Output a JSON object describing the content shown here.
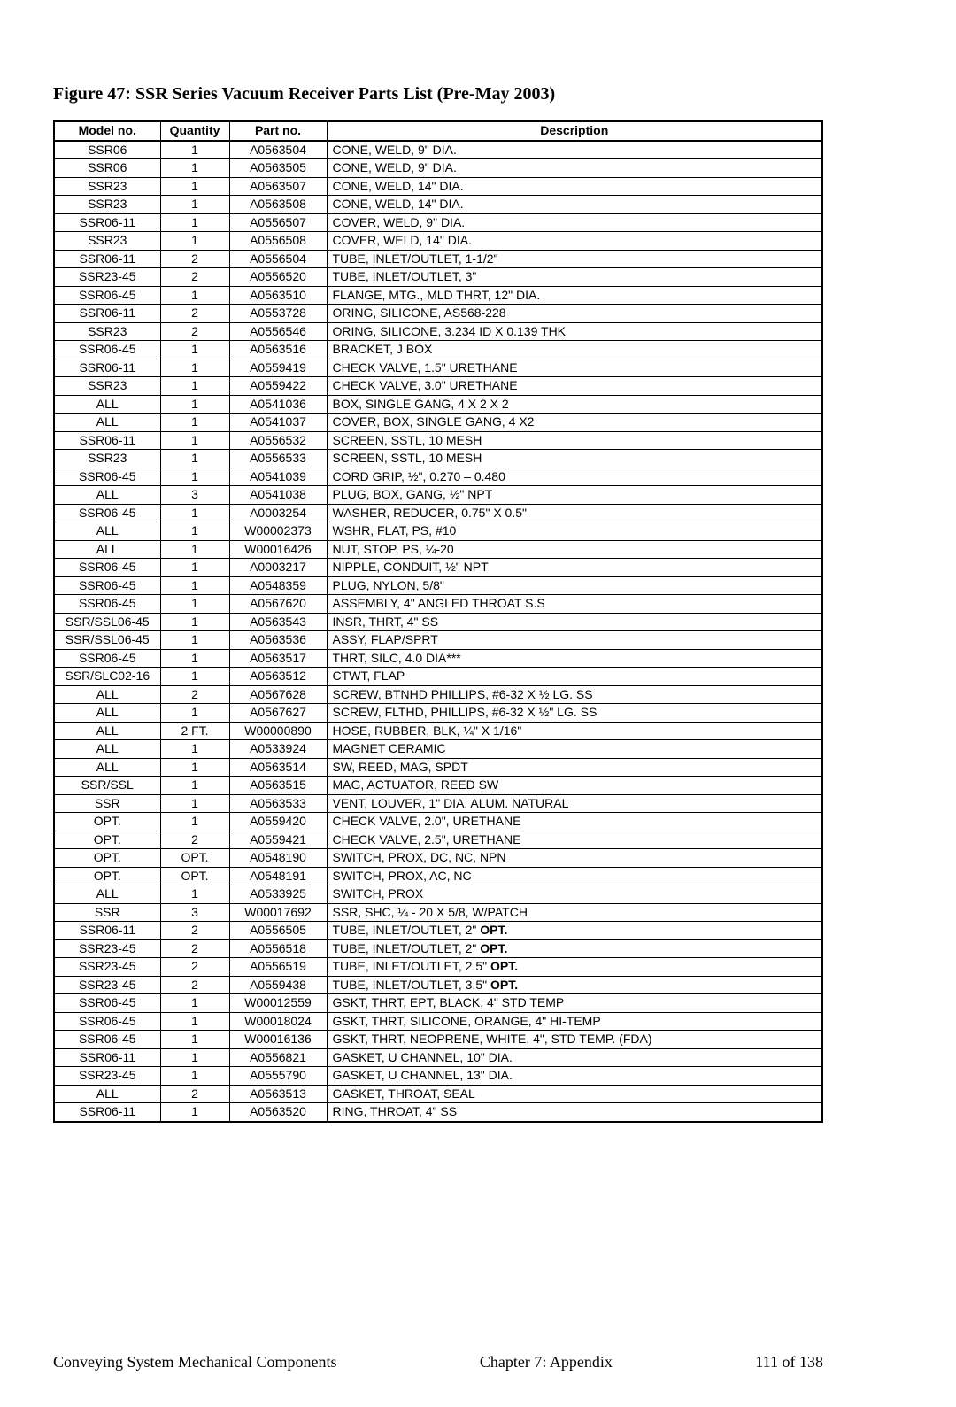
{
  "title": "Figure 47:  SSR Series Vacuum Receiver Parts List (Pre-May 2003)",
  "columns": [
    "Model no.",
    "Quantity",
    "Part no.",
    "Description"
  ],
  "rows": [
    [
      "SSR06",
      "1",
      "A0563504",
      "CONE, WELD, 9\" DIA."
    ],
    [
      "SSR06",
      "1",
      "A0563505",
      "CONE, WELD, 9\" DIA."
    ],
    [
      "SSR23",
      "1",
      "A0563507",
      "CONE, WELD, 14\" DIA."
    ],
    [
      "SSR23",
      "1",
      "A0563508",
      "CONE, WELD, 14\" DIA."
    ],
    [
      "SSR06-11",
      "1",
      "A0556507",
      "COVER, WELD, 9\" DIA."
    ],
    [
      "SSR23",
      "1",
      "A0556508",
      "COVER, WELD, 14\" DIA."
    ],
    [
      "SSR06-11",
      "2",
      "A0556504",
      "TUBE, INLET/OUTLET, 1-1/2\""
    ],
    [
      "SSR23-45",
      "2",
      "A0556520",
      "TUBE, INLET/OUTLET, 3\""
    ],
    [
      "SSR06-45",
      "1",
      "A0563510",
      "FLANGE, MTG., MLD THRT, 12\" DIA."
    ],
    [
      "SSR06-11",
      "2",
      "A0553728",
      "ORING, SILICONE, AS568-228"
    ],
    [
      "SSR23",
      "2",
      "A0556546",
      "ORING, SILICONE, 3.234 ID X 0.139 THK"
    ],
    [
      "SSR06-45",
      "1",
      "A0563516",
      "BRACKET, J BOX"
    ],
    [
      "SSR06-11",
      "1",
      "A0559419",
      "CHECK VALVE, 1.5\" URETHANE"
    ],
    [
      "SSR23",
      "1",
      "A0559422",
      "CHECK VALVE, 3.0\" URETHANE"
    ],
    [
      "ALL",
      "1",
      "A0541036",
      "BOX, SINGLE GANG, 4 X 2 X 2"
    ],
    [
      "ALL",
      "1",
      "A0541037",
      "COVER, BOX, SINGLE GANG, 4 X2"
    ],
    [
      "SSR06-11",
      "1",
      "A0556532",
      "SCREEN, SSTL, 10 MESH"
    ],
    [
      "SSR23",
      "1",
      "A0556533",
      "SCREEN, SSTL, 10 MESH"
    ],
    [
      "SSR06-45",
      "1",
      "A0541039",
      "CORD GRIP, ½\", 0.270 – 0.480"
    ],
    [
      "ALL",
      "3",
      "A0541038",
      "PLUG, BOX, GANG, ½\" NPT"
    ],
    [
      "SSR06-45",
      "1",
      "A0003254",
      "WASHER, REDUCER, 0.75\" X 0.5\""
    ],
    [
      "ALL",
      "1",
      "W00002373",
      "WSHR, FLAT, PS, #10"
    ],
    [
      "ALL",
      "1",
      "W00016426",
      "NUT, STOP, PS, ¼-20"
    ],
    [
      "SSR06-45",
      "1",
      "A0003217",
      "NIPPLE, CONDUIT, ½\" NPT"
    ],
    [
      "SSR06-45",
      "1",
      "A0548359",
      "PLUG, NYLON, 5/8\""
    ],
    [
      "SSR06-45",
      "1",
      "A0567620",
      "ASSEMBLY, 4\" ANGLED THROAT S.S"
    ],
    [
      "SSR/SSL06-45",
      "1",
      "A0563543",
      "INSR, THRT, 4\" SS"
    ],
    [
      "SSR/SSL06-45",
      "1",
      "A0563536",
      "ASSY, FLAP/SPRT"
    ],
    [
      "SSR06-45",
      "1",
      "A0563517",
      "THRT, SILC, 4.0 DIA***"
    ],
    [
      "SSR/SLC02-16",
      "1",
      "A0563512",
      "CTWT, FLAP"
    ],
    [
      "ALL",
      "2",
      "A0567628",
      "SCREW, BTNHD PHILLIPS, #6-32 X ½ LG. SS"
    ],
    [
      "ALL",
      "1",
      "A0567627",
      "SCREW, FLTHD, PHILLIPS, #6-32 X ½\" LG. SS"
    ],
    [
      "ALL",
      "2 FT.",
      "W00000890",
      "HOSE, RUBBER, BLK, ¼\" X 1/16\""
    ],
    [
      "ALL",
      "1",
      "A0533924",
      "MAGNET CERAMIC"
    ],
    [
      "ALL",
      "1",
      "A0563514",
      "SW, REED, MAG, SPDT"
    ],
    [
      "SSR/SSL",
      "1",
      "A0563515",
      "MAG, ACTUATOR, REED SW"
    ],
    [
      "SSR",
      "1",
      "A0563533",
      "VENT, LOUVER, 1\" DIA. ALUM. NATURAL"
    ],
    [
      "OPT.",
      "1",
      "A0559420",
      "CHECK VALVE, 2.0\", URETHANE"
    ],
    [
      "OPT.",
      "2",
      "A0559421",
      "CHECK VALVE, 2.5\", URETHANE"
    ],
    [
      "OPT.",
      "OPT.",
      "A0548190",
      "SWITCH, PROX, DC, NC, NPN"
    ],
    [
      "OPT.",
      "OPT.",
      "A0548191",
      "SWITCH, PROX, AC, NC"
    ],
    [
      "ALL",
      "1",
      "A0533925",
      "SWITCH, PROX"
    ],
    [
      "SSR",
      "3",
      "W00017692",
      "SSR, SHC, ¼ - 20 X 5/8, W/PATCH"
    ],
    [
      "SSR06-11",
      "2",
      "A0556505",
      "TUBE, INLET/OUTLET, 2\"   <b>OPT.</b>"
    ],
    [
      "SSR23-45",
      "2",
      "A0556518",
      "TUBE, INLET/OUTLET, 2\" <b>OPT.</b>"
    ],
    [
      "SSR23-45",
      "2",
      "A0556519",
      "TUBE, INLET/OUTLET, 2.5\" <b>OPT.</b>"
    ],
    [
      "SSR23-45",
      "2",
      "A0559438",
      "TUBE, INLET/OUTLET, 3.5\" <b>OPT.</b>"
    ],
    [
      "SSR06-45",
      "1",
      "W00012559",
      "GSKT, THRT, EPT, BLACK, 4\" STD TEMP"
    ],
    [
      "SSR06-45",
      "1",
      "W00018024",
      "GSKT, THRT, SILICONE, ORANGE, 4\" HI-TEMP"
    ],
    [
      "SSR06-45",
      "1",
      "W00016136",
      "GSKT, THRT, NEOPRENE, WHITE, 4\", STD TEMP. (FDA)"
    ],
    [
      "SSR06-11",
      "1",
      "A0556821",
      "GASKET, U CHANNEL, 10\" DIA."
    ],
    [
      "SSR23-45",
      "1",
      "A0555790",
      "GASKET, U CHANNEL, 13\" DIA."
    ],
    [
      "ALL",
      "2",
      "A0563513",
      "GASKET, THROAT, SEAL"
    ],
    [
      "SSR06-11",
      "1",
      "A0563520",
      "RING, THROAT, 4\" SS"
    ]
  ],
  "footer_left": "Conveying System Mechanical Components",
  "footer_mid": "Chapter 7: Appendix",
  "footer_right": "111 of 138"
}
